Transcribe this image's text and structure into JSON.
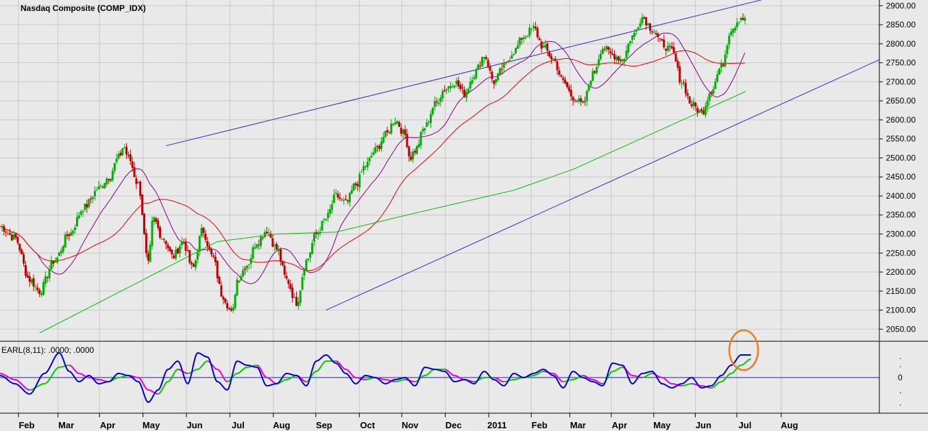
{
  "chart_data": {
    "type": "candlestick",
    "title": "Nasdaq Composite (COMP_IDX)",
    "price_axis": {
      "ylim": [
        2020,
        2915
      ],
      "ticks": [
        "2900.00",
        "2850.00",
        "2800.00",
        "2750.00",
        "2700.00",
        "2650.00",
        "2600.00",
        "2550.00",
        "2500.00",
        "2450.00",
        "2400.00",
        "2350.00",
        "2300.00",
        "2250.00",
        "2200.00",
        "2150.00",
        "2100.00",
        "2050.00"
      ]
    },
    "x_axis": {
      "labels": [
        "Feb",
        "Mar",
        "Apr",
        "May",
        "Jun",
        "Jul",
        "Aug",
        "Sep",
        "Oct",
        "Nov",
        "Dec",
        "2011",
        "Feb",
        "Mar",
        "Apr",
        "May",
        "Jun",
        "Jul",
        "Aug"
      ],
      "label_weeks": [
        2.7,
        6.7,
        10.9,
        15.3,
        19.7,
        24.1,
        28.5,
        32.8,
        37.2,
        41.5,
        45.9,
        50.3,
        54.6,
        58.5,
        62.7,
        67.0,
        71.2,
        75.4,
        79.9
      ],
      "range_weeks": [
        0,
        89
      ]
    },
    "price_anchors": {
      "weeks": [
        0,
        1.5,
        3,
        4,
        5.5,
        7,
        8.5,
        10,
        11,
        12,
        12.5,
        13,
        14,
        15,
        15.5,
        16.5,
        17.5,
        18.5,
        19.5,
        20.5,
        21.5,
        22.5,
        23.5,
        24,
        25,
        26,
        27,
        28,
        29,
        30,
        31,
        32,
        33,
        34,
        35,
        36,
        37,
        38,
        39,
        40,
        41,
        41.5,
        42,
        43,
        44,
        45,
        46,
        47,
        48,
        49,
        50,
        51,
        52,
        53,
        54,
        55,
        56,
        57,
        58,
        59,
        60,
        61,
        62,
        63,
        64,
        65,
        66,
        67,
        68,
        69,
        70,
        71,
        72,
        73,
        74,
        75,
        75.5
      ],
      "closes": [
        2320,
        2290,
        2180,
        2150,
        2230,
        2300,
        2370,
        2420,
        2450,
        2500,
        2530,
        2500,
        2430,
        2220,
        2340,
        2290,
        2240,
        2280,
        2210,
        2310,
        2240,
        2140,
        2090,
        2180,
        2220,
        2280,
        2310,
        2260,
        2180,
        2120,
        2230,
        2300,
        2340,
        2400,
        2380,
        2430,
        2480,
        2520,
        2560,
        2600,
        2560,
        2500,
        2520,
        2580,
        2640,
        2680,
        2700,
        2670,
        2720,
        2770,
        2700,
        2740,
        2780,
        2820,
        2840,
        2790,
        2760,
        2700,
        2660,
        2640,
        2720,
        2790,
        2770,
        2760,
        2820,
        2870,
        2840,
        2800,
        2780,
        2700,
        2640,
        2620,
        2680,
        2740,
        2840,
        2870,
        2860
      ]
    },
    "lines": [
      {
        "name": "ma_short",
        "color": "#800080"
      },
      {
        "name": "ma_mid",
        "color": "#e00000"
      },
      {
        "name": "ma_long",
        "color": "#00c000"
      }
    ],
    "trendlines": [
      {
        "from": [
          16.8,
          2532
        ],
        "to": [
          77.8,
          2920
        ],
        "color": "#3030c0"
      },
      {
        "from": [
          33,
          2100
        ],
        "to": [
          89,
          2758
        ],
        "color": "#3030c0"
      }
    ],
    "up_color": "#00b000",
    "down_color": "#c00000",
    "indicator": {
      "label": "EARL(8,11): .0000; .0000",
      "zero_label": "0",
      "fast_color": "#0000cc",
      "slow_color": "#00cc00",
      "slow_alt_color": "#e000e0",
      "weeks": [
        0,
        1.5,
        3,
        4.5,
        6,
        7,
        8,
        9,
        10,
        11,
        12,
        13,
        14,
        15,
        16,
        17,
        18,
        19,
        20,
        21,
        22,
        23,
        24,
        25,
        26,
        27,
        28,
        29,
        30,
        31,
        32,
        33,
        34,
        35,
        36,
        37,
        38,
        39,
        40,
        41,
        42,
        43,
        44,
        45,
        46,
        47,
        48,
        49,
        50,
        51,
        52,
        53,
        54,
        55,
        56,
        57,
        58,
        59,
        60,
        61,
        62,
        63,
        64,
        65,
        66,
        67,
        68,
        69,
        70,
        71,
        72,
        73,
        74,
        75,
        76
      ],
      "fast": [
        0.1,
        -0.3,
        -0.8,
        0.2,
        1.2,
        0.3,
        -0.2,
        0.1,
        -0.3,
        -0.2,
        0.2,
        0.1,
        -0.2,
        -1.2,
        -0.6,
        0.4,
        0.8,
        -0.3,
        1.2,
        1.0,
        -0.2,
        -0.6,
        0.8,
        0.6,
        0.5,
        -0.4,
        -0.3,
        0.2,
        0.1,
        -0.4,
        0.8,
        1.1,
        0.7,
        0.2,
        -0.3,
        0.1,
        0.0,
        -0.3,
        -0.1,
        0.0,
        -0.4,
        0.5,
        0.4,
        0.3,
        -0.2,
        -0.1,
        -0.3,
        0.3,
        -0.1,
        -0.4,
        0.2,
        0.0,
        0.2,
        0.4,
        0.1,
        -0.5,
        0.3,
        0.0,
        -0.2,
        -0.4,
        0.7,
        0.6,
        -0.3,
        0.2,
        0.3,
        -0.3,
        -0.5,
        -0.3,
        0.0,
        -0.5,
        -0.4,
        0.1,
        0.6,
        1.1,
        1.1
      ],
      "slow": [
        0.2,
        -0.1,
        -0.6,
        -0.3,
        0.5,
        0.6,
        0.2,
        0.0,
        -0.1,
        -0.2,
        0.0,
        0.1,
        0.0,
        -0.6,
        -0.8,
        -0.2,
        0.4,
        0.2,
        0.4,
        0.8,
        0.4,
        -0.2,
        0.2,
        0.5,
        0.6,
        0.0,
        -0.3,
        -0.1,
        0.1,
        -0.2,
        0.3,
        0.8,
        0.8,
        0.4,
        0.0,
        -0.1,
        0.0,
        -0.1,
        -0.2,
        -0.1,
        -0.2,
        0.1,
        0.4,
        0.4,
        0.1,
        -0.1,
        -0.2,
        0.0,
        0.0,
        -0.2,
        -0.1,
        0.0,
        0.1,
        0.3,
        0.2,
        -0.2,
        -0.1,
        0.1,
        -0.1,
        -0.3,
        0.3,
        0.5,
        0.1,
        0.0,
        0.2,
        0.0,
        -0.3,
        -0.4,
        -0.3,
        -0.4,
        -0.5,
        -0.2,
        0.2,
        0.6,
        0.9
      ],
      "ylim": [
        -1.5,
        1.5
      ],
      "right_marks": [
        ".",
        ".",
        ".",
        "."
      ]
    },
    "highlight": {
      "week": 75.2,
      "value": 1.0,
      "color": "#f07a20"
    }
  }
}
